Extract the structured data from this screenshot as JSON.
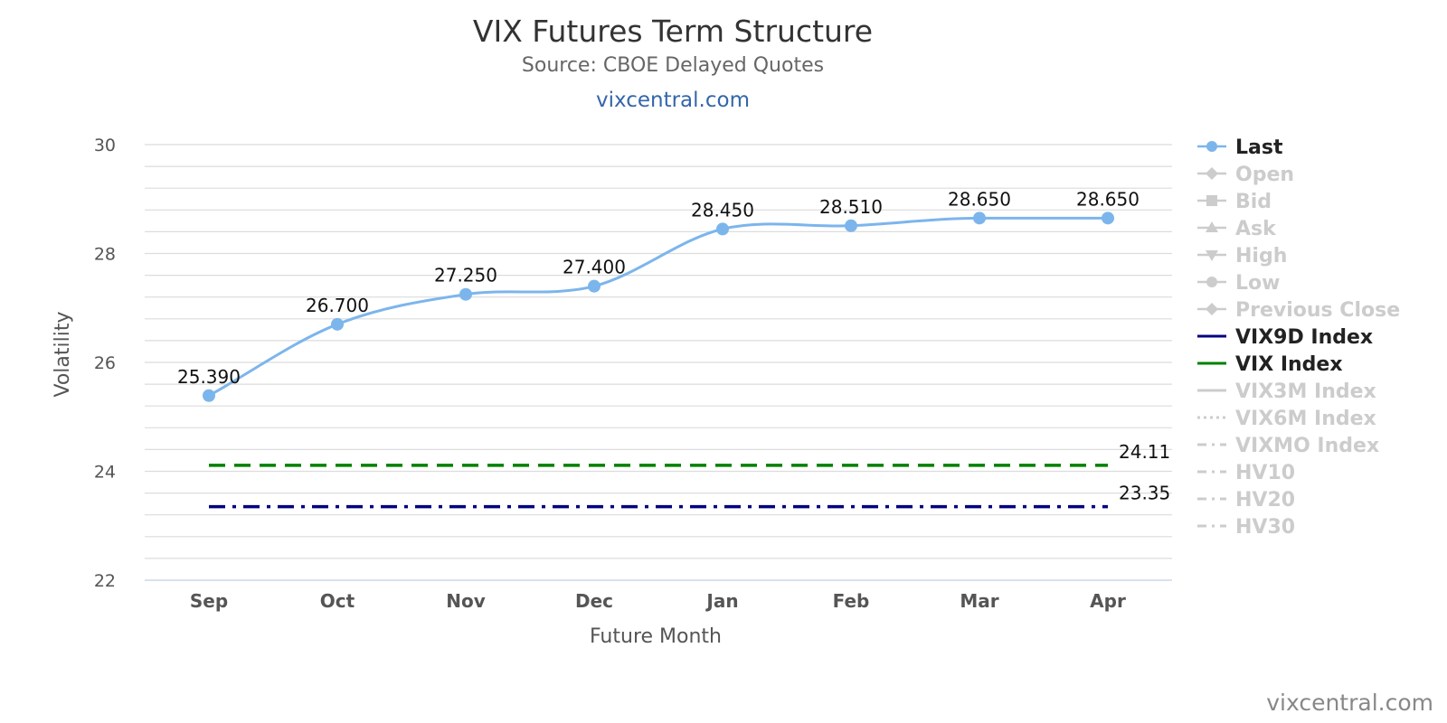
{
  "chart_data": {
    "type": "line",
    "title": "VIX Futures Term Structure",
    "subtitle": "Source: CBOE Delayed Quotes",
    "link_text": "vixcentral.com",
    "credit": "vixcentral.com",
    "xlabel": "Future Month",
    "ylabel": "Volatility",
    "categories": [
      "Sep",
      "Oct",
      "Nov",
      "Dec",
      "Jan",
      "Feb",
      "Mar",
      "Apr"
    ],
    "ylim": [
      22,
      30
    ],
    "yticks": [
      "22",
      "24",
      "26",
      "28",
      "30"
    ],
    "grid": true,
    "legend_position": "right",
    "series": [
      {
        "name": "Last",
        "values": [
          25.39,
          26.7,
          27.25,
          27.4,
          28.45,
          28.51,
          28.65,
          28.65
        ],
        "labels": [
          "25.390",
          "26.700",
          "27.250",
          "27.400",
          "28.450",
          "28.510",
          "28.650",
          "28.650"
        ],
        "color": "#7cb5ec"
      }
    ],
    "reference_lines": [
      {
        "name": "VIX Index",
        "value": 24.11,
        "label": "24.11",
        "color": "#008000",
        "dash": "dashed"
      },
      {
        "name": "VIX9D Index",
        "value": 23.35,
        "label": "23.35",
        "color": "#000080",
        "dash": "dash-dot"
      }
    ],
    "legend": [
      {
        "name": "Last",
        "active": true,
        "symbol": "circle",
        "color": "#7cb5ec"
      },
      {
        "name": "Open",
        "active": false,
        "symbol": "diamond"
      },
      {
        "name": "Bid",
        "active": false,
        "symbol": "square"
      },
      {
        "name": "Ask",
        "active": false,
        "symbol": "triangle-up"
      },
      {
        "name": "High",
        "active": false,
        "symbol": "triangle-down"
      },
      {
        "name": "Low",
        "active": false,
        "symbol": "circle"
      },
      {
        "name": "Previous Close",
        "active": false,
        "symbol": "diamond"
      },
      {
        "name": "VIX9D Index",
        "active": true,
        "symbol": "line",
        "color": "#000080"
      },
      {
        "name": "VIX Index",
        "active": true,
        "symbol": "line",
        "color": "#008000"
      },
      {
        "name": "VIX3M Index",
        "active": false,
        "symbol": "line"
      },
      {
        "name": "VIX6M Index",
        "active": false,
        "symbol": "dotted"
      },
      {
        "name": "VIXMO Index",
        "active": false,
        "symbol": "dash-dot"
      },
      {
        "name": "HV10",
        "active": false,
        "symbol": "dash-dot"
      },
      {
        "name": "HV20",
        "active": false,
        "symbol": "dash-dot"
      },
      {
        "name": "HV30",
        "active": false,
        "symbol": "dash-dot"
      }
    ]
  }
}
